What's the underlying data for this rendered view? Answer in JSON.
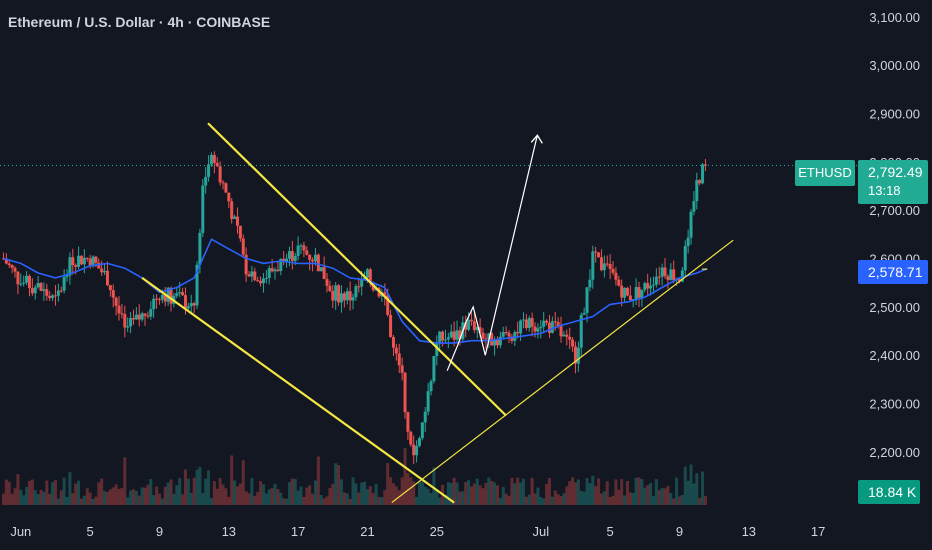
{
  "header": {
    "title": "Ethereum / U.S. Dollar · 4h · COINBASE"
  },
  "colors": {
    "background": "#131722",
    "up": "#26a69a",
    "down": "#ef5350",
    "ma": "#2962ff",
    "trendline": "#f5e642",
    "arrow": "#ffffff",
    "axis_text": "#d1d4dc"
  },
  "badges": {
    "symbol": "ETHUSD",
    "price": "2,792.49",
    "countdown": "13:18",
    "ma_value": "2,578.71",
    "volume": "18.84 K"
  },
  "chart_data": {
    "type": "candlestick",
    "title": "Ethereum / U.S. Dollar · 4h · COINBASE",
    "yticks": [
      "3,100.00",
      "3,000.00",
      "2,900.00",
      "2,800.00",
      "2,700.00",
      "2,600.00",
      "2,500.00",
      "2,400.00",
      "2,300.00",
      "2,200.00"
    ],
    "ytick_values": [
      3100,
      3000,
      2900,
      2800,
      2700,
      2600,
      2500,
      2400,
      2300,
      2200
    ],
    "xticks": [
      "Jun",
      "5",
      "9",
      "13",
      "17",
      "21",
      "25",
      "Jul",
      "5",
      "9",
      "13",
      "17"
    ],
    "xtick_day_index": [
      0,
      4,
      8,
      12,
      16,
      20,
      24,
      30,
      34,
      38,
      42,
      46
    ],
    "ylim": [
      2090,
      3135
    ],
    "xlim": [
      -1.2,
      48.3
    ],
    "last_price": 2792.49,
    "moving_average_last": 2578.71,
    "close_path_days": [
      -1,
      0,
      1,
      2,
      3,
      4,
      5,
      6,
      7,
      8,
      9,
      10,
      10.5,
      11,
      12,
      13,
      14,
      15,
      16,
      17,
      18,
      19,
      20,
      21,
      21.5,
      22,
      22.5,
      23,
      24,
      25,
      26,
      27,
      28,
      29,
      30,
      31,
      32,
      33,
      34,
      35,
      36,
      37,
      38,
      38.5,
      39,
      39.3,
      39.6
    ],
    "close_path": [
      2600,
      2550,
      2540,
      2510,
      2600,
      2600,
      2560,
      2450,
      2480,
      2530,
      2520,
      2500,
      2750,
      2820,
      2720,
      2580,
      2560,
      2590,
      2620,
      2600,
      2530,
      2520,
      2560,
      2520,
      2410,
      2350,
      2200,
      2220,
      2430,
      2440,
      2470,
      2430,
      2440,
      2460,
      2470,
      2450,
      2400,
      2600,
      2570,
      2520,
      2540,
      2580,
      2560,
      2640,
      2760,
      2780,
      2790
    ],
    "ma_days": [
      -1,
      0,
      1,
      2,
      3,
      4,
      5,
      6,
      7,
      8,
      9,
      10,
      11,
      12,
      13,
      14,
      15,
      16,
      17,
      18,
      19,
      20,
      21,
      22,
      23,
      24,
      25,
      26,
      27,
      28,
      29,
      30,
      31,
      32,
      33,
      34,
      35,
      36,
      37,
      38,
      39,
      39.6
    ],
    "ma_values": [
      2600,
      2590,
      2570,
      2560,
      2570,
      2585,
      2590,
      2580,
      2560,
      2530,
      2540,
      2560,
      2640,
      2620,
      2600,
      2590,
      2595,
      2590,
      2590,
      2580,
      2560,
      2555,
      2540,
      2470,
      2430,
      2425,
      2425,
      2430,
      2430,
      2435,
      2440,
      2445,
      2460,
      2470,
      2480,
      2505,
      2510,
      2520,
      2540,
      2560,
      2570,
      2578.71
    ],
    "trendlines": [
      {
        "from": [
          10.8,
          2880
        ],
        "to": [
          28,
          2275
        ]
      },
      {
        "from": [
          7,
          2560
        ],
        "to": [
          25,
          2095
        ]
      },
      {
        "from": [
          21.4,
          2095
        ],
        "to": [
          41.1,
          2638
        ]
      },
      {
        "from": [
          39.3,
          2578
        ],
        "to": [
          39.6,
          2578
        ]
      }
    ],
    "arrow_path": [
      [
        24.6,
        2368
      ],
      [
        25.2,
        2420
      ],
      [
        25.7,
        2470
      ],
      [
        26.1,
        2500
      ],
      [
        26.8,
        2400
      ],
      [
        29.8,
        2855
      ]
    ]
  }
}
